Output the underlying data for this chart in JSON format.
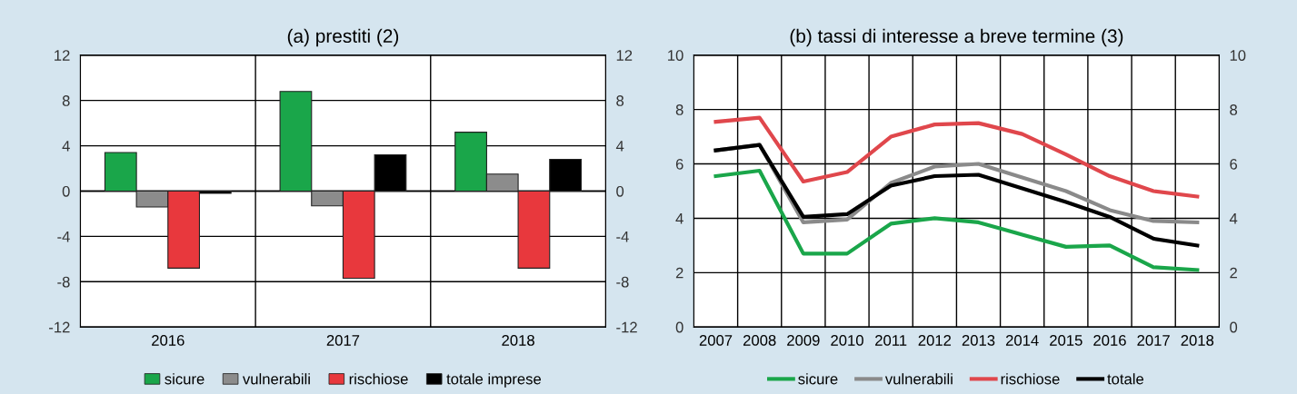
{
  "chart_data": [
    {
      "type": "bar",
      "title": "(a) prestiti (2)",
      "categories": [
        "2016",
        "2017",
        "2018"
      ],
      "series": [
        {
          "name": "sicure",
          "color": "#1aa64a",
          "values": [
            3.4,
            8.8,
            5.2
          ]
        },
        {
          "name": "vulnerabili",
          "color": "#8c8c8c",
          "values": [
            -1.4,
            -1.3,
            1.5
          ]
        },
        {
          "name": "rischiose",
          "color": "#e8383d",
          "values": [
            -6.8,
            -7.7,
            -6.8
          ]
        },
        {
          "name": "totale imprese",
          "color": "#000000",
          "values": [
            -0.2,
            3.2,
            2.8
          ]
        }
      ],
      "ylim": [
        -12,
        12
      ],
      "yticks": [
        -12,
        -8,
        -4,
        0,
        4,
        8,
        12
      ],
      "y2lim": [
        -12,
        12
      ],
      "y2ticks": [
        -12,
        -8,
        -4,
        0,
        4,
        8,
        12
      ],
      "grid": true,
      "legend": "bottom"
    },
    {
      "type": "line",
      "title": "(b) tassi di interesse a breve termine (3)",
      "categories": [
        "2007",
        "2008",
        "2009",
        "2010",
        "2011",
        "2012",
        "2013",
        "2014",
        "2015",
        "2016",
        "2017",
        "2018"
      ],
      "series": [
        {
          "name": "sicure",
          "color": "#1aa64a",
          "values": [
            5.55,
            5.75,
            2.7,
            2.7,
            3.8,
            4.0,
            3.85,
            3.4,
            2.95,
            3.0,
            2.2,
            2.1
          ]
        },
        {
          "name": "vulnerabili",
          "color": "#8a8a8a",
          "values": [
            6.5,
            6.7,
            3.85,
            3.95,
            5.3,
            5.9,
            6.0,
            5.5,
            5.0,
            4.3,
            3.9,
            3.85
          ]
        },
        {
          "name": "rischiose",
          "color": "#e0474c",
          "values": [
            7.55,
            7.7,
            5.35,
            5.7,
            7.0,
            7.45,
            7.5,
            7.1,
            6.35,
            5.55,
            5.0,
            4.8
          ]
        },
        {
          "name": "totale",
          "color": "#000000",
          "values": [
            6.5,
            6.7,
            4.05,
            4.15,
            5.2,
            5.55,
            5.6,
            5.1,
            4.6,
            4.05,
            3.25,
            3.0
          ]
        }
      ],
      "ylim": [
        0,
        10
      ],
      "yticks": [
        0,
        2,
        4,
        6,
        8,
        10
      ],
      "y2lim": [
        0,
        10
      ],
      "y2ticks": [
        0,
        2,
        4,
        6,
        8,
        10
      ],
      "grid": true,
      "legend": "bottom",
      "marker": "none",
      "line_style": "solid"
    }
  ]
}
